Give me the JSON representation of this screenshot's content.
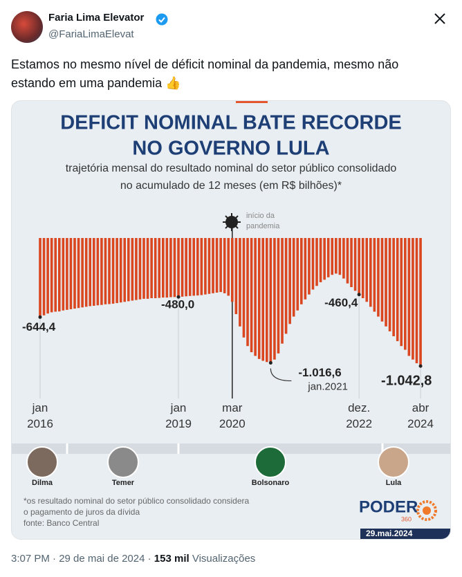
{
  "header": {
    "name": "Faria Lima Elevator",
    "handle": "@FariaLimaElevat"
  },
  "tweet": {
    "text": "Estamos no mesmo nível de déficit nominal da pandemia, mesmo não estando em uma pandemia 👍"
  },
  "footer": {
    "time": "3:07 PM · 29 de mai de 2024 ·",
    "views": "153 mil",
    "views_label": "Visualizações"
  },
  "chart_data": {
    "type": "bar",
    "title": [
      "DEFICIT NOMINAL BATE RECORDE",
      "NO GOVERNO LULA"
    ],
    "subtitle": [
      "trajetória mensal do resultado nominal do setor público consolidado",
      "no acumulado de 12 meses (em R$ bilhões)*"
    ],
    "categories": [
      "jan 2016",
      null,
      null,
      null,
      null,
      null,
      null,
      null,
      null,
      null,
      null,
      null,
      null,
      null,
      null,
      null,
      null,
      null,
      null,
      null,
      null,
      null,
      null,
      null,
      null,
      null,
      null,
      null,
      null,
      null,
      null,
      null,
      null,
      null,
      null,
      null,
      "jan 2019",
      null,
      null,
      null,
      null,
      null,
      null,
      null,
      null,
      null,
      null,
      null,
      null,
      null,
      "mar 2020",
      null,
      null,
      null,
      null,
      null,
      null,
      null,
      null,
      null,
      null,
      null,
      null,
      null,
      null,
      null,
      null,
      null,
      null,
      null,
      null,
      null,
      null,
      null,
      null,
      null,
      null,
      null,
      null,
      null,
      null,
      null,
      null,
      "dez. 2022",
      null,
      null,
      null,
      null,
      null,
      null,
      null,
      null,
      null,
      null,
      null,
      null,
      null,
      null,
      null,
      "abr 2024"
    ],
    "values": [
      -644.4,
      -630,
      -615,
      -605,
      -600,
      -598,
      -590,
      -585,
      -580,
      -575,
      -570,
      -565,
      -560,
      -555,
      -552,
      -548,
      -545,
      -540,
      -538,
      -535,
      -530,
      -525,
      -520,
      -515,
      -510,
      -505,
      -500,
      -495,
      -495,
      -490,
      -490,
      -488,
      -485,
      -485,
      -482,
      -481,
      -480,
      -478,
      -475,
      -472,
      -470,
      -468,
      -465,
      -460,
      -455,
      -450,
      -445,
      -440,
      -450,
      -470,
      -520,
      -620,
      -720,
      -810,
      -880,
      -930,
      -960,
      -985,
      -1000,
      -1010,
      -1016.6,
      -990,
      -940,
      -860,
      -780,
      -700,
      -640,
      -590,
      -540,
      -500,
      -460,
      -420,
      -390,
      -360,
      -340,
      -320,
      -300,
      -290,
      -300,
      -330,
      -370,
      -400,
      -430,
      -460.4,
      -490,
      -520,
      -560,
      -600,
      -640,
      -680,
      -720,
      -760,
      -800,
      -840,
      -880,
      -910,
      -960,
      -990,
      -1020,
      -1042.8
    ],
    "value_labels": [
      "-644,4",
      null,
      null,
      null,
      null,
      null,
      null,
      null,
      null,
      null,
      null,
      null,
      null,
      null,
      null,
      null,
      null,
      null,
      null,
      null,
      null,
      null,
      null,
      null,
      null,
      null,
      null,
      null,
      null,
      null,
      null,
      null,
      null,
      null,
      null,
      null,
      "-480,0",
      null,
      null,
      null,
      null,
      null,
      null,
      null,
      null,
      null,
      null,
      null,
      null,
      null,
      null,
      null,
      null,
      null,
      null,
      null,
      null,
      null,
      null,
      null,
      "-1.016,6",
      null,
      null,
      null,
      null,
      null,
      null,
      null,
      null,
      null,
      null,
      null,
      null,
      null,
      null,
      null,
      null,
      null,
      null,
      null,
      null,
      null,
      null,
      "-460,4",
      null,
      null,
      null,
      null,
      null,
      null,
      null,
      null,
      null,
      null,
      null,
      null,
      null,
      null,
      null,
      "-1.042,8"
    ],
    "color": "#d9461f",
    "ylim": [
      -1200,
      0
    ],
    "annotations": [
      "início da",
      "pandemia",
      "jan.2021"
    ],
    "presidents": [
      "Dilma",
      "Temer",
      "Bolsonaro",
      "Lula"
    ],
    "notes": [
      "*os resultado nominal do setor público consolidado considera",
      "o pagamento de juros da dívida",
      "fonte: Banco Central"
    ],
    "brand": "PODER",
    "brand_sub": "360",
    "date": "29.mai.2024"
  }
}
